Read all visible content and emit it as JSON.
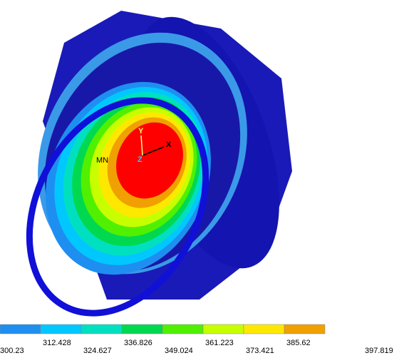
{
  "plot": {
    "min_label": "MN",
    "triad": {
      "y": "Y",
      "x": "X",
      "z": "Z"
    }
  },
  "legend": {
    "labels": [
      "300.23",
      "312.428",
      "324.627",
      "336.826",
      "349.024",
      "361.223",
      "373.421",
      "385.62",
      "397.819"
    ],
    "colors": [
      "#1e8ff0",
      "#00c8ff",
      "#00e0c0",
      "#00d850",
      "#50f000",
      "#c8ff00",
      "#ffe800",
      "#f0a000",
      "#ff0000"
    ]
  }
}
